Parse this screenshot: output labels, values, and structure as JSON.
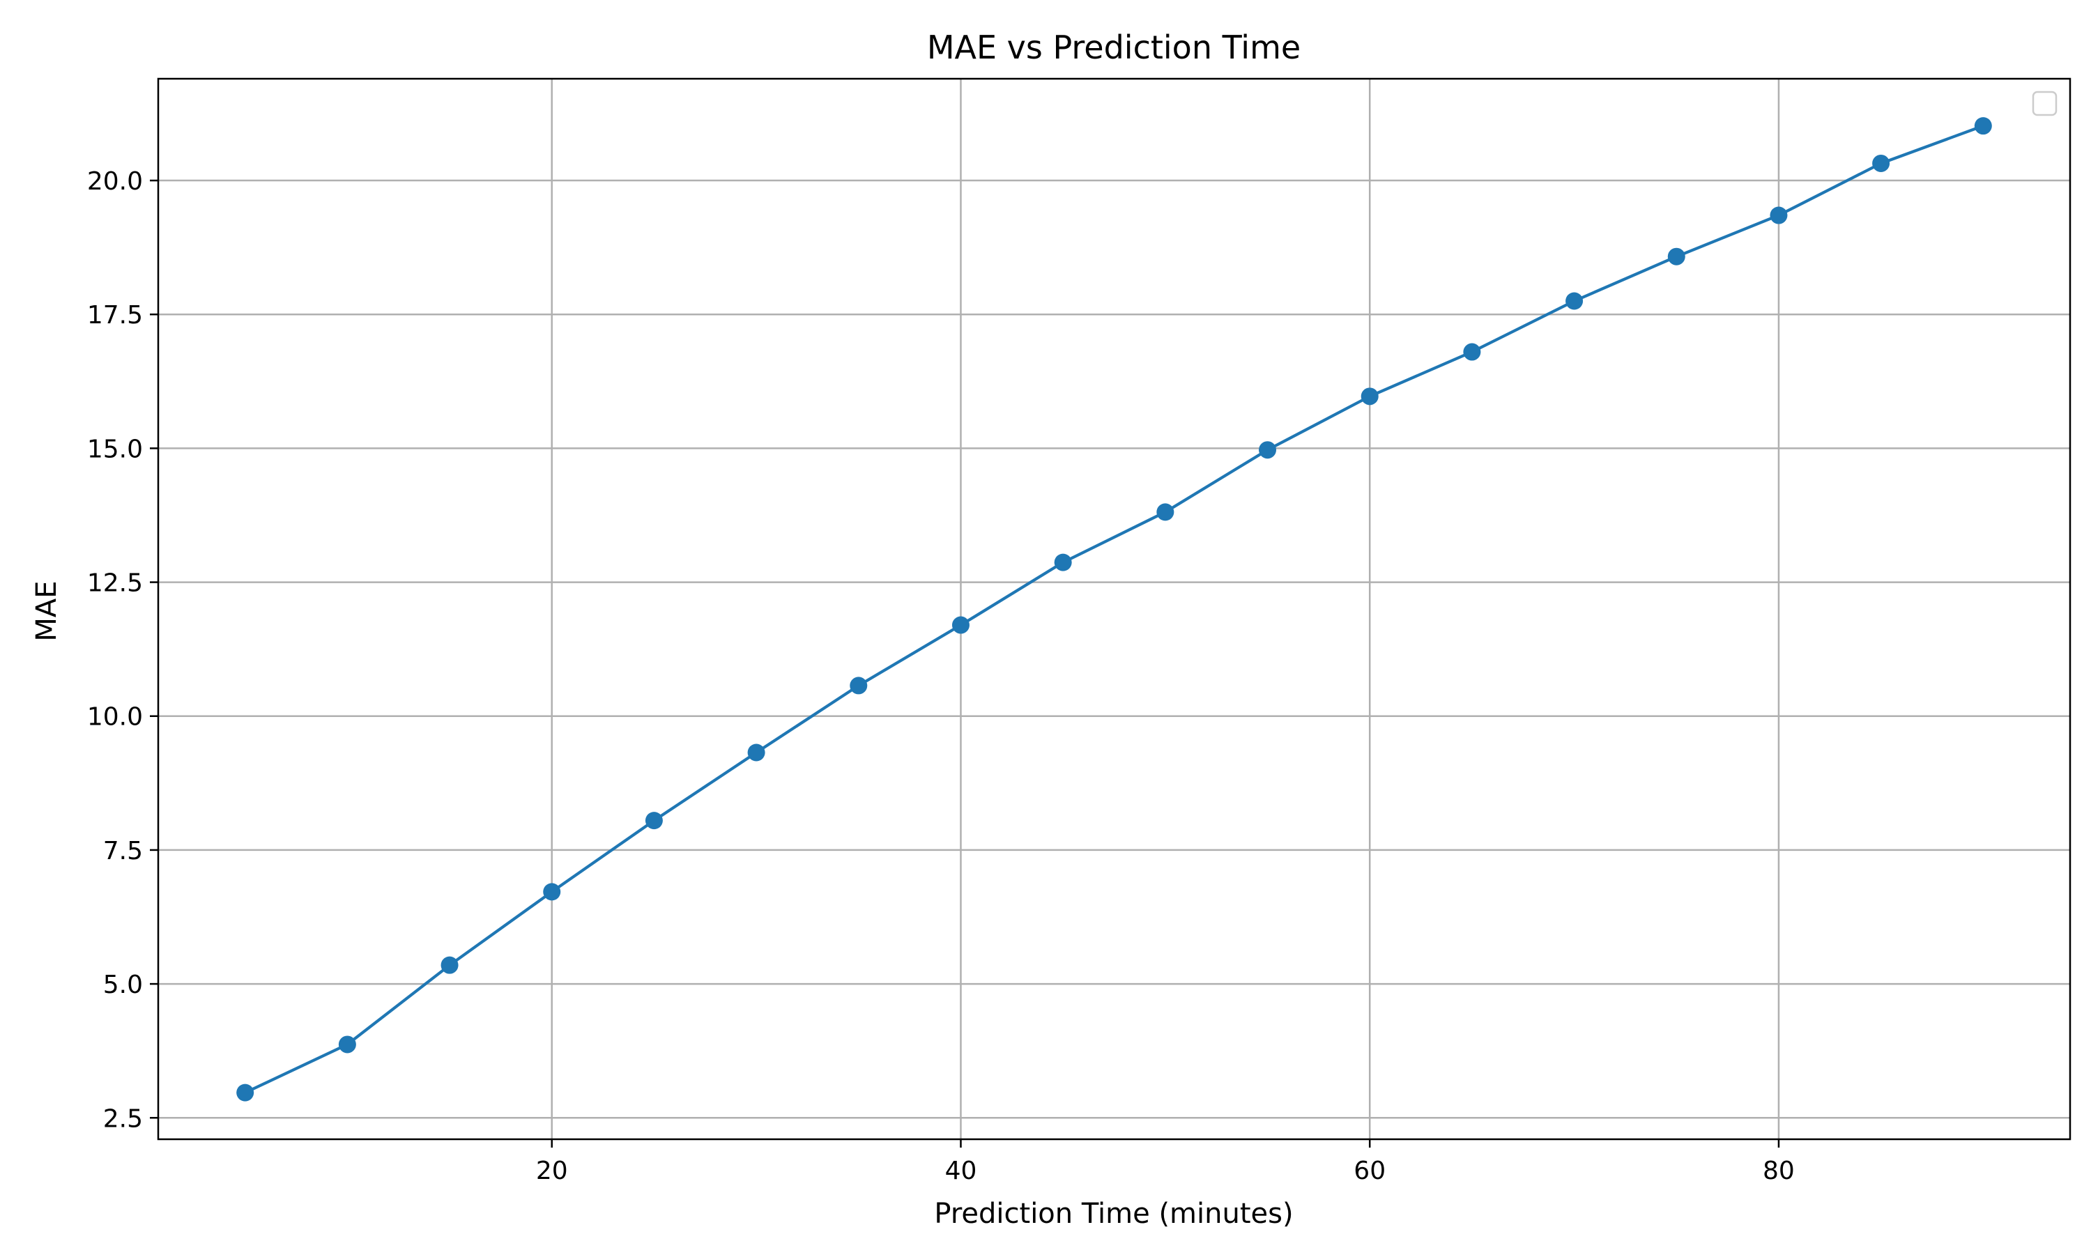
{
  "chart_data": {
    "type": "line",
    "title": "MAE vs Prediction Time",
    "xlabel": "Prediction Time (minutes)",
    "ylabel": "MAE",
    "xlim": [
      0.75,
      94.25
    ],
    "ylim": [
      2.1,
      21.9
    ],
    "xticks": [
      20,
      40,
      60,
      80
    ],
    "yticks": [
      2.5,
      5.0,
      7.5,
      10.0,
      12.5,
      15.0,
      17.5,
      20.0
    ],
    "grid": true,
    "legend": "top-right",
    "series": [
      {
        "x": [
          5,
          10,
          15,
          20,
          25,
          30,
          35,
          40,
          45,
          50,
          55,
          60,
          65,
          70,
          75,
          80,
          85,
          90
        ],
        "values": [
          2.97,
          3.87,
          5.35,
          6.72,
          8.05,
          9.32,
          10.57,
          11.7,
          12.87,
          13.81,
          14.97,
          15.97,
          16.8,
          17.75,
          18.58,
          19.35,
          20.32,
          21.02
        ],
        "color": "#1f77b4",
        "marker": "circle"
      }
    ]
  }
}
